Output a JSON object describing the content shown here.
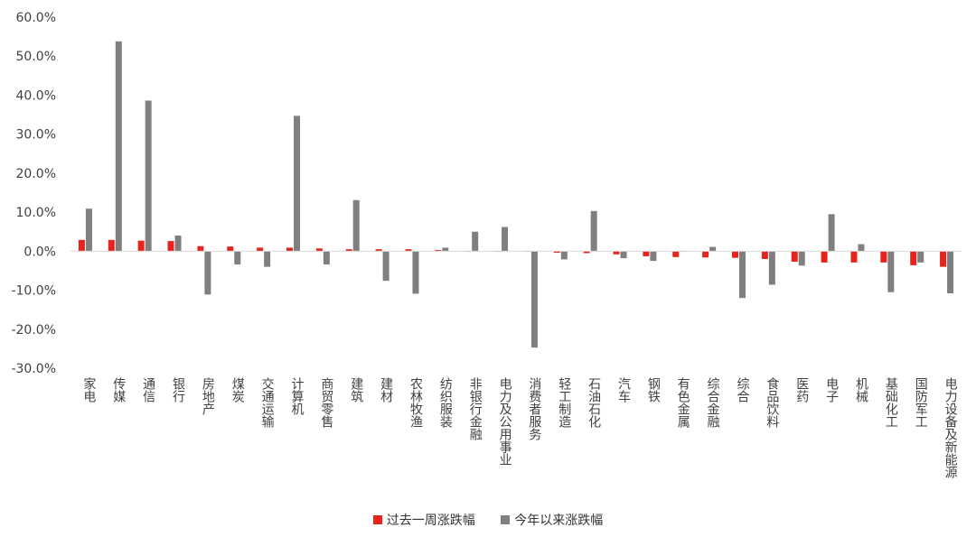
{
  "chart_data": {
    "type": "bar",
    "title": "",
    "xlabel": "",
    "ylabel": "",
    "ylim": [
      -30,
      60
    ],
    "y_ticks": [
      "60.0%",
      "50.0%",
      "40.0%",
      "30.0%",
      "20.0%",
      "10.0%",
      "0.0%",
      "-10.0%",
      "-20.0%",
      "-30.0%"
    ],
    "y_tick_values": [
      60,
      50,
      40,
      30,
      20,
      10,
      0,
      -10,
      -20,
      -30
    ],
    "grid": false,
    "legend_position": "bottom",
    "categories": [
      "家电",
      "传媒",
      "通信",
      "银行",
      "房地产",
      "煤炭",
      "交通运输",
      "计算机",
      "商贸零售",
      "建筑",
      "建材",
      "农林牧渔",
      "纺织服装",
      "非银行金融",
      "电力及公用事业",
      "消费者服务",
      "轻工制造",
      "石油石化",
      "汽车",
      "钢铁",
      "有色金属",
      "综合金融",
      "综合",
      "食品饮料",
      "医药",
      "电子",
      "机械",
      "基础化工",
      "国防军工",
      "电力设备及新能源"
    ],
    "series": [
      {
        "name": "过去一周涨跌幅",
        "color": "#e8231b",
        "values": [
          2.9,
          2.9,
          2.7,
          2.6,
          1.3,
          1.2,
          0.9,
          0.9,
          0.7,
          0.5,
          0.5,
          0.5,
          0.3,
          0.0,
          0.0,
          0.0,
          -0.4,
          -0.5,
          -0.8,
          -1.3,
          -1.5,
          -1.6,
          -1.7,
          -2.0,
          -2.7,
          -2.9,
          -2.9,
          -2.9,
          -3.6,
          -4.0
        ]
      },
      {
        "name": "今年以来涨跌幅",
        "color": "#7f7f7f",
        "values": [
          10.9,
          53.8,
          38.6,
          4.0,
          -11.1,
          -3.4,
          -4.0,
          34.7,
          -3.4,
          13.1,
          -7.6,
          -10.9,
          0.9,
          5.0,
          6.2,
          -24.7,
          -2.1,
          10.3,
          -1.8,
          -2.5,
          -0.1,
          1.1,
          -12.0,
          -8.6,
          -3.7,
          9.5,
          1.8,
          -10.5,
          -2.9,
          -10.8
        ]
      }
    ]
  }
}
